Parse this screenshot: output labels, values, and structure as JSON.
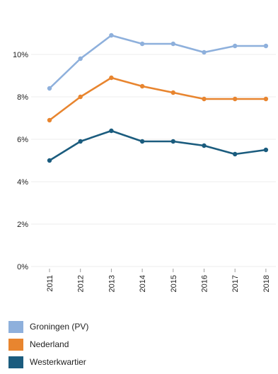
{
  "chart_data": {
    "type": "line",
    "x": [
      "2011",
      "2012",
      "2013",
      "2014",
      "2015",
      "2016",
      "2017",
      "2018"
    ],
    "yticks": [
      "0%",
      "2%",
      "4%",
      "6%",
      "8%",
      "10%"
    ],
    "ylim": [
      0,
      11
    ],
    "grid": true,
    "legend_position": "bottom",
    "series": [
      {
        "name": "Groningen (PV)",
        "color": "#8eb0dc",
        "values": [
          8.4,
          9.8,
          10.9,
          10.5,
          10.5,
          10.1,
          10.4,
          10.4
        ]
      },
      {
        "name": "Nederland",
        "color": "#e8852f",
        "values": [
          6.9,
          8.0,
          8.9,
          8.5,
          8.2,
          7.9,
          7.9,
          7.9
        ]
      },
      {
        "name": "Westerkwartier",
        "color": "#1b5c7e",
        "values": [
          5.0,
          5.9,
          6.4,
          5.9,
          5.9,
          5.7,
          5.3,
          5.5
        ]
      }
    ]
  }
}
